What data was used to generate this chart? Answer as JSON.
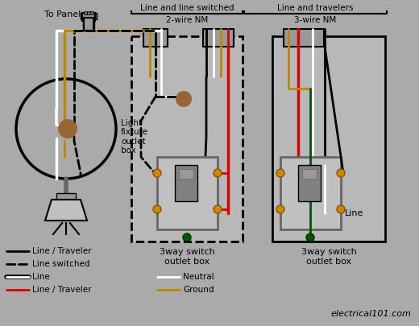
{
  "bg_color": "#aaaaaa",
  "colors": {
    "black": "#000000",
    "white": "#ffffff",
    "red": "#dd0000",
    "ground": "#bb8800",
    "gray": "#aaaaaa",
    "dark_gray": "#666666",
    "mid_gray": "#999999",
    "switch_body": "#c0c0c0",
    "switch_toggle": "#808080",
    "brown": "#996633",
    "green": "#005500",
    "tan": "#aa7744",
    "box_fill": "#b8b8b8",
    "cable_gray": "#888888"
  },
  "labels": {
    "to_panel": "To Panel",
    "line_line_switched": "Line and line switched",
    "two_wire_nm": "2-wire NM",
    "line_travelers": "Line and travelers",
    "three_wire_nm": "3-wire NM",
    "light_fixture": "Light\nfixture\noutlet\nbox",
    "switch1_box": "3way switch\noutlet box",
    "switch2_box": "3way switch\noutlet box",
    "line_label": "Line",
    "source_url": "electrical101.com"
  },
  "legend_items": [
    {
      "label": "Line / Traveler",
      "color": "#000000",
      "style": "solid_black"
    },
    {
      "label": "Line switched",
      "color": "#000000",
      "style": "dashed"
    },
    {
      "label": "Line",
      "color": "#000000",
      "style": "outlined_white"
    },
    {
      "label": "Line / Traveler",
      "color": "#dd0000",
      "style": "solid_red"
    },
    {
      "label": "Neutral",
      "color": "#ffffff",
      "style": "solid_white"
    },
    {
      "label": "Ground",
      "color": "#bb8800",
      "style": "solid_ground"
    }
  ]
}
